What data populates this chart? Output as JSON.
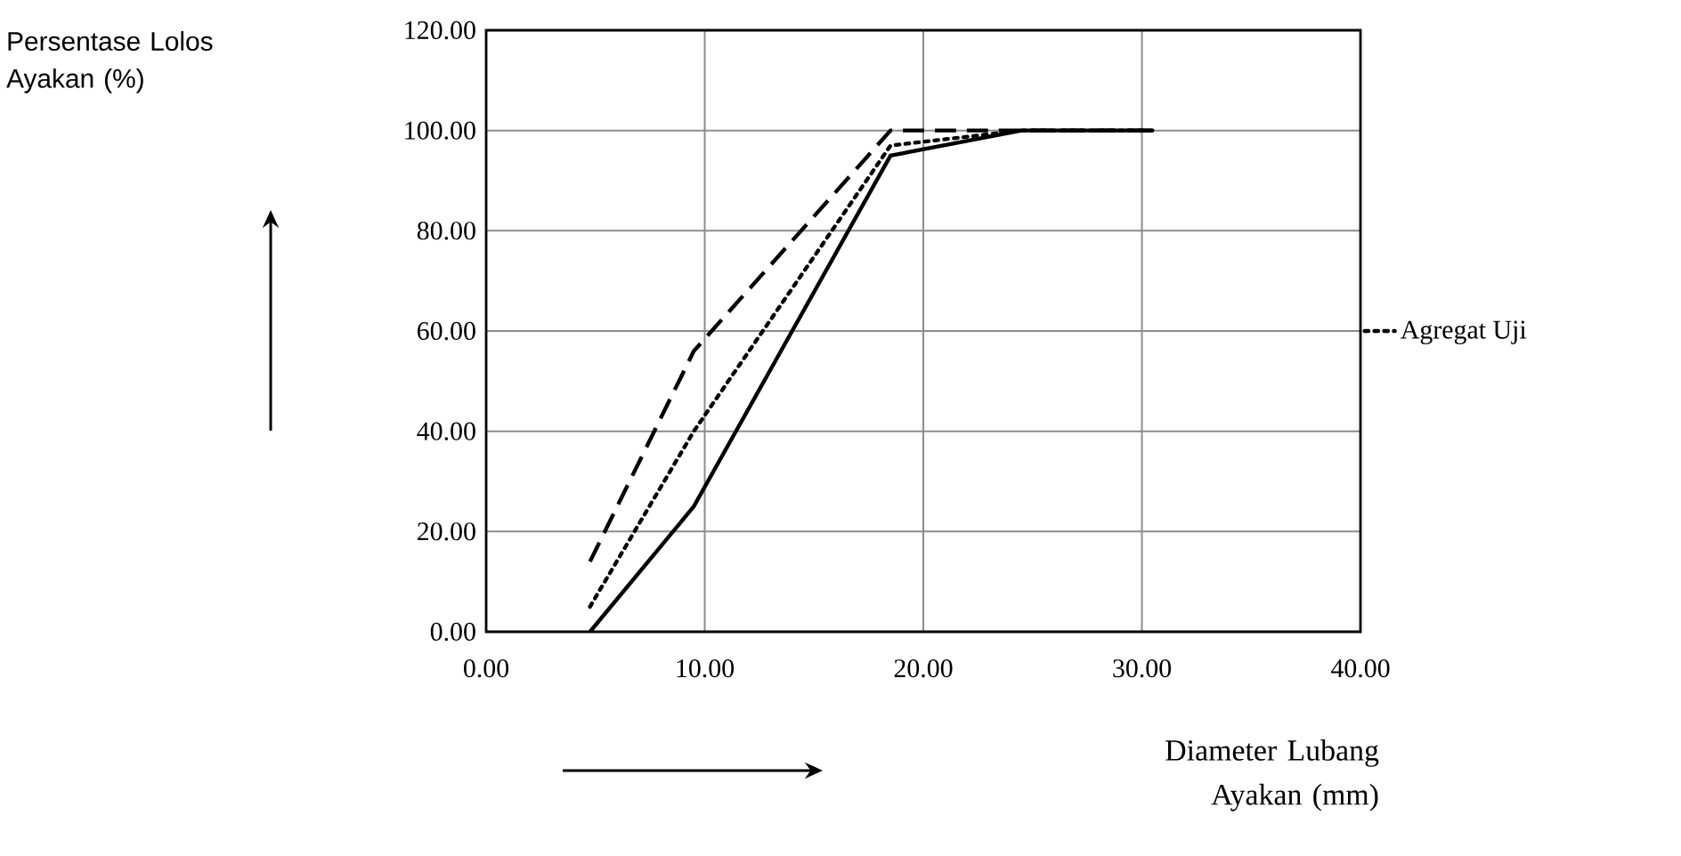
{
  "chart_data": {
    "type": "line",
    "annotations": [
      "Persentase Lolos Ayakan (%)",
      "Diameter Lubang Ayakan (mm)"
    ],
    "x": [
      4.75,
      9.5,
      18.5,
      24.5,
      30.5
    ],
    "series": [
      {
        "color": "#000000",
        "line_style": "solid",
        "values": [
          0,
          25,
          95,
          100,
          100
        ]
      },
      {
        "color": "#000000",
        "line_style": "dashed",
        "values": [
          14,
          56,
          100,
          100,
          100
        ]
      },
      {
        "name": "Agregat Uji",
        "color": "#000000",
        "line_style": "dotted",
        "values": [
          5,
          40,
          97,
          100,
          100
        ]
      }
    ],
    "xlim": [
      0,
      40
    ],
    "ylim": [
      0,
      120
    ],
    "xticks": [
      {
        "value": 0,
        "label": "0.00"
      },
      {
        "value": 10,
        "label": "10.00"
      },
      {
        "value": 20,
        "label": "20.00"
      },
      {
        "value": 30,
        "label": "30.00"
      },
      {
        "value": 40,
        "label": "40.00"
      }
    ],
    "yticks": [
      {
        "value": 0,
        "label": "0.00"
      },
      {
        "value": 20,
        "label": "20.00"
      },
      {
        "value": 40,
        "label": "40.00"
      },
      {
        "value": 60,
        "label": "60.00"
      },
      {
        "value": 80,
        "label": "80.00"
      },
      {
        "value": 100,
        "label": "100.00"
      },
      {
        "value": 120,
        "label": "120.00"
      }
    ],
    "grid": true,
    "legend": "right",
    "marker": "none"
  }
}
